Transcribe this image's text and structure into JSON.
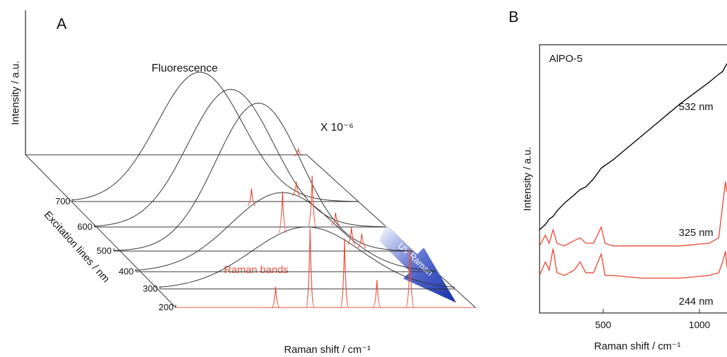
{
  "chart_data": [
    {
      "type": "waterfall",
      "panel_label": "A",
      "ylabel": "Intensity / a.u.",
      "zlabel": "Excitation lines / nm",
      "xlabel": "Raman shift / cm⁻¹",
      "zticks": [
        700,
        600,
        500,
        400,
        300,
        200
      ],
      "annotations": [
        "Fluorescence",
        "X 10⁻⁶",
        "Raman bands",
        "UV Raman"
      ]
    },
    {
      "type": "line",
      "panel_label": "B",
      "annotation": "AlPO-5",
      "ylabel": "Intensity / a.u.",
      "xlabel": "Raman shift / cm⁻¹",
      "x": [
        170,
        200,
        220,
        240,
        260,
        300,
        350,
        380,
        410,
        450,
        490,
        510,
        550,
        700,
        900,
        1050,
        1100,
        1120,
        1135,
        1143
      ],
      "xlim": [
        170,
        1143
      ],
      "ylim": [
        0,
        100
      ],
      "xticks": [
        500,
        1000
      ],
      "series": [
        {
          "name": "532 nm",
          "color": "#000000",
          "values": [
            31,
            33,
            35,
            36,
            38,
            41,
            44,
            46,
            47,
            50,
            54,
            55,
            57,
            66,
            78,
            86,
            89,
            90,
            92,
            93
          ]
        },
        {
          "name": "325 nm",
          "color": "#e8503a",
          "values": [
            25,
            29,
            26,
            31,
            26,
            25,
            27,
            28,
            26,
            26,
            32,
            26,
            25,
            25,
            25,
            26,
            28,
            40,
            49,
            45
          ]
        },
        {
          "name": "244 nm",
          "color": "#e8503a",
          "values": [
            14,
            19,
            16,
            24,
            15,
            14,
            16,
            19,
            15,
            15,
            22,
            14,
            14,
            13,
            13,
            14,
            15,
            19,
            23,
            17
          ]
        }
      ]
    }
  ]
}
